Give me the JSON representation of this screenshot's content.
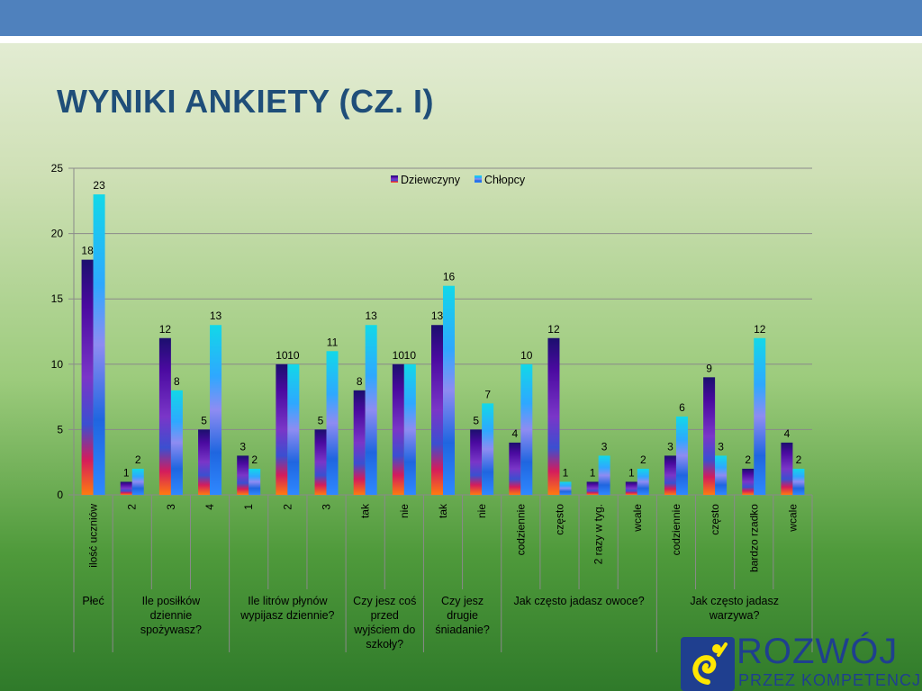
{
  "slide": {
    "title": "WYNIKI ANKIETY (CZ. I)",
    "colors": {
      "topbar": "#4f81bd",
      "title": "#1f4e79",
      "logo": "#1f3f8f"
    }
  },
  "logo": {
    "line1": "ROZWÓJ",
    "line2": "PRZEZ KOMPETENCJE"
  },
  "chart_data": {
    "type": "bar",
    "ylim": [
      0,
      25
    ],
    "yticks": [
      0,
      5,
      10,
      15,
      20,
      25
    ],
    "grid": true,
    "legend_position": "top",
    "series": [
      {
        "name": "Dziewczyny",
        "values": [
          18,
          1,
          12,
          5,
          3,
          10,
          5,
          8,
          10,
          13,
          5,
          4,
          12,
          1,
          1,
          3,
          9,
          2,
          4
        ],
        "icon": "red-blue-gradient"
      },
      {
        "name": "Chłopcy",
        "values": [
          23,
          2,
          8,
          13,
          2,
          10,
          11,
          13,
          10,
          16,
          7,
          10,
          1,
          3,
          2,
          6,
          3,
          12,
          2
        ],
        "icon": "cyan-blue-gradient"
      }
    ],
    "categories": [
      "ilość uczniów",
      "2",
      "3",
      "4",
      "1",
      "2",
      "3",
      "tak",
      "nie",
      "tak",
      "nie",
      "codziennie",
      "często",
      "2 razy w tyg.",
      "wcale",
      "codziennie",
      "często",
      "bardzo rzadko",
      "wcale"
    ],
    "groups": [
      {
        "label": [
          "Płeć"
        ],
        "count": 1
      },
      {
        "label": [
          "Ile posiłków",
          "dziennie",
          "spożywasz?"
        ],
        "count": 3
      },
      {
        "label": [
          "Ile litrów płynów",
          "wypijasz dziennie?"
        ],
        "count": 3
      },
      {
        "label": [
          "Czy jesz coś",
          "przed",
          "wyjściem do",
          "szkoły?"
        ],
        "count": 2
      },
      {
        "label": [
          "Czy jesz",
          "drugie",
          "śniadanie?"
        ],
        "count": 2
      },
      {
        "label": [
          "Jak często jadasz owoce?"
        ],
        "count": 4
      },
      {
        "label": [
          "Jak często jadasz",
          "warzywa?"
        ],
        "count": 4
      }
    ]
  }
}
